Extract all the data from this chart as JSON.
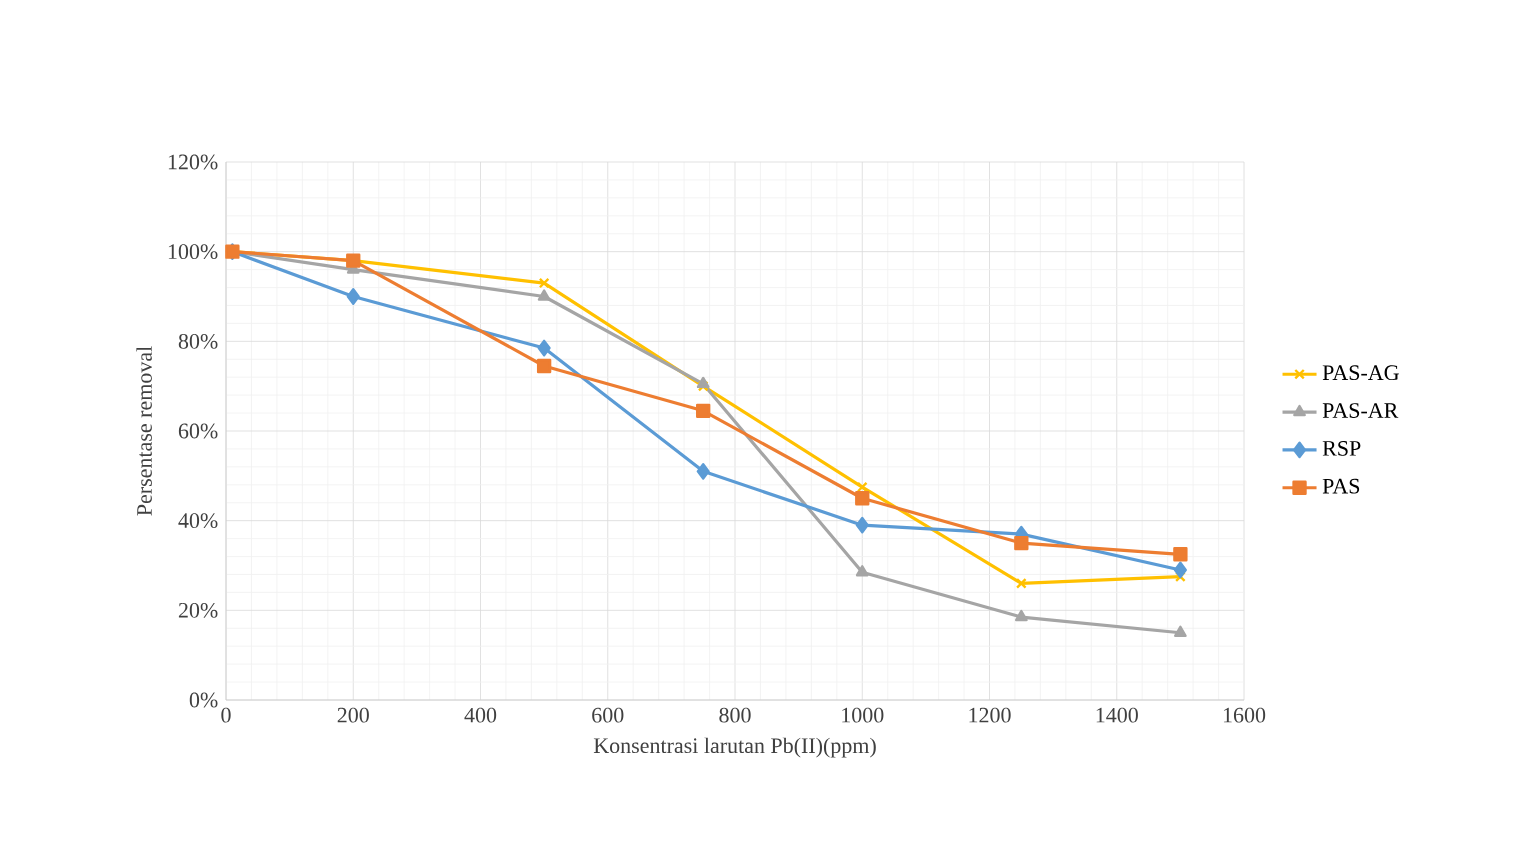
{
  "chart_data": {
    "type": "line",
    "xlabel": "Konsentrasi larutan Pb(II)(ppm)",
    "ylabel": "Persentase removal",
    "x": [
      10,
      200,
      500,
      750,
      1000,
      1250,
      1500
    ],
    "series": [
      {
        "name": "PAS-AG",
        "color": "#ffc000",
        "marker": "cross",
        "values": [
          100,
          98,
          93,
          70,
          47.5,
          26,
          27.5
        ]
      },
      {
        "name": "PAS-AR",
        "color": "#a5a5a5",
        "marker": "triangle",
        "values": [
          100,
          96,
          90,
          70.5,
          28.5,
          18.5,
          15
        ]
      },
      {
        "name": "RSP",
        "color": "#5b9bd5",
        "marker": "diamond",
        "values": [
          100,
          90,
          78.5,
          51,
          39,
          37,
          29
        ]
      },
      {
        "name": "PAS",
        "color": "#ed7d31",
        "marker": "square",
        "values": [
          100,
          98,
          74.5,
          64.5,
          45,
          35,
          32.5
        ]
      }
    ],
    "xlim": [
      0,
      1600
    ],
    "xticks": [
      0,
      200,
      400,
      600,
      800,
      1000,
      1200,
      1400,
      1600
    ],
    "ylim": [
      0,
      120
    ],
    "yticks": [
      {
        "value": 0,
        "label": "0%"
      },
      {
        "value": 20,
        "label": "20%"
      },
      {
        "value": 40,
        "label": "40%"
      },
      {
        "value": 60,
        "label": "60%"
      },
      {
        "value": 80,
        "label": "80%"
      },
      {
        "value": 100,
        "label": "100%"
      },
      {
        "value": 120,
        "label": "120%"
      }
    ],
    "grid": true,
    "legend": "right"
  }
}
